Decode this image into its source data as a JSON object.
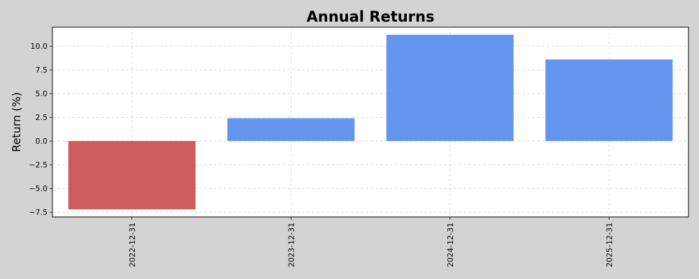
{
  "chart_data": {
    "type": "bar",
    "title": "Annual Returns",
    "xlabel": "",
    "ylabel": "Return (%)",
    "categories": [
      "2022-12-31",
      "2023-12-31",
      "2024-12-31",
      "2025-12-31"
    ],
    "values": [
      -7.2,
      2.4,
      11.2,
      8.6
    ],
    "ylim": [
      -8.0,
      12.0
    ],
    "yticks": [
      -7.5,
      -5.0,
      -2.5,
      0.0,
      2.5,
      5.0,
      7.5,
      10.0
    ],
    "ytick_labels": [
      "−7.5",
      "−5.0",
      "−2.5",
      "0.0",
      "2.5",
      "5.0",
      "7.5",
      "10.0"
    ],
    "grid": true,
    "legend": "none",
    "colors": {
      "positive": "#6495ed",
      "negative": "#cd5c5c"
    }
  }
}
